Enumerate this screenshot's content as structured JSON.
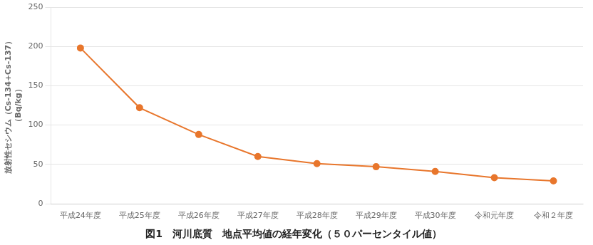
{
  "chart_data": {
    "type": "line",
    "caption": "図1　河川底質　地点平均値の経年変化（５０パーセンタイル値）",
    "y_label": [
      "放射性セシウム（Cs-134+Cs-137）",
      "（Bq/kg）"
    ],
    "categories": [
      "平成24年度",
      "平成25年度",
      "平成26年度",
      "平成27年度",
      "平成28年度",
      "平成29年度",
      "平成30年度",
      "令和元年度",
      "令和２年度"
    ],
    "values": [
      198,
      122,
      88,
      60,
      51,
      47,
      41,
      33,
      29
    ],
    "color": "#E8762C",
    "marker": "circle",
    "ylim": [
      0,
      250
    ],
    "yticks": [
      0,
      50,
      100,
      150,
      200,
      250
    ],
    "grid": "y"
  }
}
